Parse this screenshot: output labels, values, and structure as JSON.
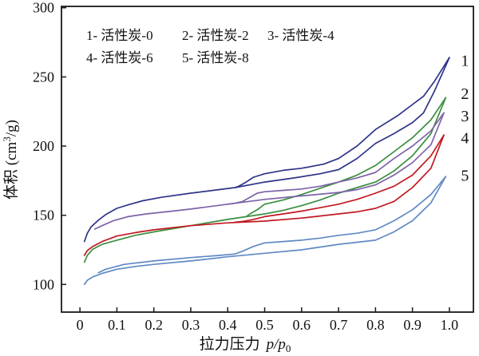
{
  "chart_data": {
    "type": "line",
    "title": "",
    "xlabel_cn": "拉力压力",
    "xlabel_math_main": "p/p",
    "xlabel_math_sub": "0",
    "ylabel_prefix": "体积 (cm",
    "ylabel_sup": "3",
    "ylabel_suffix": "/g)",
    "xlim": [
      -0.05,
      1.065
    ],
    "ylim": [
      80,
      301
    ],
    "xticks": [
      "0",
      "0.1",
      "0.2",
      "0.3",
      "0.4",
      "0.5",
      "0.6",
      "0.7",
      "0.8",
      "0.9",
      "1.0"
    ],
    "xtick_values": [
      0,
      0.1,
      0.2,
      0.3,
      0.4,
      0.5,
      0.6,
      0.7,
      0.8,
      0.9,
      1.0
    ],
    "yticks": [
      "100",
      "150",
      "200",
      "250",
      "300"
    ],
    "ytick_values": [
      100,
      150,
      200,
      250,
      300
    ],
    "grid": false,
    "legend_position": "inside-top-left",
    "legend": [
      {
        "label": "1- 活性炭-0"
      },
      {
        "label": "2- 活性炭-2"
      },
      {
        "label": "3- 活性炭-4"
      },
      {
        "label": "4- 活性炭-6"
      },
      {
        "label": "5- 活性炭-8"
      }
    ],
    "axis_color": "#1a1a1a",
    "series": [
      {
        "name": "活性炭-0",
        "end_label": "1",
        "end_label_pos": [
          1.042,
          262
        ],
        "color": "#2e3487",
        "adsorption": [
          [
            0.012,
            131
          ],
          [
            0.02,
            137
          ],
          [
            0.03,
            141.5
          ],
          [
            0.05,
            146.5
          ],
          [
            0.07,
            150.5
          ],
          [
            0.1,
            155
          ],
          [
            0.13,
            157.5
          ],
          [
            0.17,
            160.5
          ],
          [
            0.22,
            163
          ],
          [
            0.3,
            166
          ],
          [
            0.36,
            168
          ],
          [
            0.42,
            170
          ],
          [
            0.5,
            174
          ],
          [
            0.58,
            177
          ],
          [
            0.65,
            180
          ],
          [
            0.7,
            183
          ],
          [
            0.75,
            191
          ],
          [
            0.8,
            202
          ],
          [
            0.85,
            209
          ],
          [
            0.9,
            217
          ],
          [
            0.93,
            224
          ],
          [
            0.96,
            240
          ],
          [
            1.0,
            264
          ]
        ],
        "desorption": [
          [
            1.0,
            264
          ],
          [
            0.96,
            247
          ],
          [
            0.93,
            236
          ],
          [
            0.9,
            230
          ],
          [
            0.86,
            222
          ],
          [
            0.8,
            212
          ],
          [
            0.75,
            200
          ],
          [
            0.7,
            191
          ],
          [
            0.66,
            187
          ],
          [
            0.6,
            184
          ],
          [
            0.55,
            182.5
          ],
          [
            0.5,
            180
          ],
          [
            0.47,
            177.5
          ],
          [
            0.45,
            174
          ],
          [
            0.43,
            171
          ],
          [
            0.42,
            170
          ]
        ]
      },
      {
        "name": "活性炭-2",
        "end_label": "2",
        "end_label_pos": [
          1.042,
          238
        ],
        "color": "#3a8e3f",
        "adsorption": [
          [
            0.012,
            116
          ],
          [
            0.02,
            121
          ],
          [
            0.035,
            125.5
          ],
          [
            0.06,
            129
          ],
          [
            0.1,
            132
          ],
          [
            0.15,
            135.5
          ],
          [
            0.2,
            138
          ],
          [
            0.3,
            142.5
          ],
          [
            0.4,
            147
          ],
          [
            0.45,
            149
          ],
          [
            0.5,
            151
          ],
          [
            0.55,
            153.5
          ],
          [
            0.6,
            157
          ],
          [
            0.65,
            161
          ],
          [
            0.7,
            166
          ],
          [
            0.75,
            170
          ],
          [
            0.8,
            174
          ],
          [
            0.85,
            182
          ],
          [
            0.9,
            193
          ],
          [
            0.95,
            209
          ],
          [
            0.99,
            235
          ]
        ],
        "desorption": [
          [
            0.99,
            235
          ],
          [
            0.95,
            219
          ],
          [
            0.9,
            206
          ],
          [
            0.85,
            196
          ],
          [
            0.8,
            186
          ],
          [
            0.75,
            179
          ],
          [
            0.7,
            174
          ],
          [
            0.65,
            169.5
          ],
          [
            0.6,
            165
          ],
          [
            0.55,
            161
          ],
          [
            0.5,
            158
          ],
          [
            0.48,
            154
          ],
          [
            0.46,
            151
          ],
          [
            0.45,
            149
          ]
        ]
      },
      {
        "name": "活性炭-4",
        "end_label": "3",
        "end_label_pos": [
          1.042,
          222
        ],
        "color": "#7d62a8",
        "adsorption": [
          [
            0.04,
            140
          ],
          [
            0.06,
            142.5
          ],
          [
            0.09,
            146
          ],
          [
            0.13,
            149
          ],
          [
            0.18,
            151
          ],
          [
            0.25,
            153
          ],
          [
            0.3,
            154.5
          ],
          [
            0.4,
            158
          ],
          [
            0.5,
            161.5
          ],
          [
            0.6,
            164
          ],
          [
            0.7,
            166.5
          ],
          [
            0.75,
            168.5
          ],
          [
            0.8,
            172
          ],
          [
            0.85,
            179
          ],
          [
            0.9,
            188
          ],
          [
            0.95,
            201
          ],
          [
            0.985,
            224
          ]
        ],
        "desorption": [
          [
            0.985,
            224
          ],
          [
            0.95,
            211
          ],
          [
            0.9,
            200
          ],
          [
            0.85,
            191
          ],
          [
            0.8,
            181
          ],
          [
            0.75,
            177
          ],
          [
            0.7,
            174
          ],
          [
            0.65,
            171
          ],
          [
            0.6,
            169
          ],
          [
            0.55,
            168
          ],
          [
            0.5,
            167
          ],
          [
            0.48,
            166
          ],
          [
            0.46,
            163
          ],
          [
            0.44,
            160
          ],
          [
            0.42,
            158.7
          ],
          [
            0.4,
            158
          ]
        ]
      },
      {
        "name": "活性炭-6",
        "end_label": "4",
        "end_label_pos": [
          1.042,
          206
        ],
        "color": "#c01920",
        "adsorption": [
          [
            0.012,
            121
          ],
          [
            0.02,
            124.5
          ],
          [
            0.035,
            127.5
          ],
          [
            0.06,
            131
          ],
          [
            0.1,
            135
          ],
          [
            0.15,
            137.5
          ],
          [
            0.2,
            139.5
          ],
          [
            0.3,
            142.5
          ],
          [
            0.4,
            144.5
          ],
          [
            0.5,
            145.8
          ],
          [
            0.6,
            148
          ],
          [
            0.7,
            151
          ],
          [
            0.75,
            152.5
          ],
          [
            0.8,
            155
          ],
          [
            0.85,
            160
          ],
          [
            0.9,
            170
          ],
          [
            0.95,
            184
          ],
          [
            0.985,
            208
          ]
        ],
        "desorption": [
          [
            0.985,
            208
          ],
          [
            0.95,
            193
          ],
          [
            0.9,
            179
          ],
          [
            0.85,
            171
          ],
          [
            0.8,
            166
          ],
          [
            0.75,
            161.5
          ],
          [
            0.7,
            158
          ],
          [
            0.65,
            155.5
          ],
          [
            0.6,
            153
          ],
          [
            0.55,
            151
          ],
          [
            0.5,
            149
          ],
          [
            0.47,
            147
          ],
          [
            0.44,
            145.5
          ],
          [
            0.42,
            145
          ]
        ]
      },
      {
        "name": "活性炭-8",
        "end_label": "5",
        "end_label_pos": [
          1.042,
          179
        ],
        "color": "#6189c4",
        "adsorption": [
          [
            0.012,
            100
          ],
          [
            0.02,
            103
          ],
          [
            0.035,
            105.5
          ],
          [
            0.06,
            108
          ],
          [
            0.1,
            111
          ],
          [
            0.15,
            113
          ],
          [
            0.2,
            114.5
          ],
          [
            0.3,
            117
          ],
          [
            0.4,
            120
          ],
          [
            0.5,
            122.5
          ],
          [
            0.6,
            125
          ],
          [
            0.7,
            129
          ],
          [
            0.8,
            132
          ],
          [
            0.85,
            138
          ],
          [
            0.9,
            146
          ],
          [
            0.95,
            159
          ],
          [
            0.99,
            178
          ]
        ],
        "desorption": [
          [
            0.99,
            178
          ],
          [
            0.95,
            165
          ],
          [
            0.9,
            154
          ],
          [
            0.85,
            146
          ],
          [
            0.8,
            139.5
          ],
          [
            0.75,
            137
          ],
          [
            0.7,
            135.5
          ],
          [
            0.65,
            133.5
          ],
          [
            0.6,
            132
          ],
          [
            0.55,
            131
          ],
          [
            0.5,
            130
          ],
          [
            0.47,
            127.5
          ],
          [
            0.44,
            124
          ],
          [
            0.42,
            122
          ],
          [
            0.38,
            121
          ],
          [
            0.3,
            119.4
          ],
          [
            0.2,
            117
          ],
          [
            0.12,
            114.5
          ],
          [
            0.07,
            111
          ],
          [
            0.05,
            108.5
          ]
        ]
      }
    ]
  }
}
